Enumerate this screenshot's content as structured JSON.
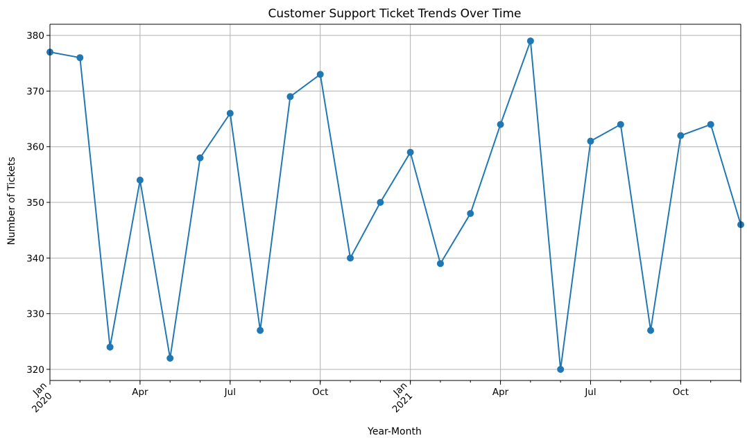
{
  "chart_data": {
    "type": "line",
    "title": "Customer Support Ticket Trends Over Time",
    "xlabel": "Year-Month",
    "ylabel": "Number of Tickets",
    "ylim": [
      318,
      382
    ],
    "yticks": [
      320,
      330,
      340,
      350,
      360,
      370,
      380
    ],
    "grid": true,
    "legend": "none",
    "series_color": "#1f77b4",
    "x": [
      "2020-01",
      "2020-02",
      "2020-03",
      "2020-04",
      "2020-05",
      "2020-06",
      "2020-07",
      "2020-08",
      "2020-09",
      "2020-10",
      "2020-11",
      "2020-12",
      "2021-01",
      "2021-02",
      "2021-03",
      "2021-04",
      "2021-05",
      "2021-06",
      "2021-07",
      "2021-08",
      "2021-09",
      "2021-10",
      "2021-11",
      "2021-12"
    ],
    "values": [
      377,
      376,
      324,
      354,
      322,
      358,
      366,
      327,
      369,
      373,
      340,
      350,
      359,
      339,
      348,
      364,
      379,
      320,
      361,
      364,
      327,
      362,
      364,
      346
    ],
    "xtick_labels": [
      {
        "index": 0,
        "month": "Jan",
        "year": "2020"
      },
      {
        "index": 3,
        "month": "Apr"
      },
      {
        "index": 6,
        "month": "Jul"
      },
      {
        "index": 9,
        "month": "Oct"
      },
      {
        "index": 12,
        "month": "Jan",
        "year": "2021"
      },
      {
        "index": 15,
        "month": "Apr"
      },
      {
        "index": 18,
        "month": "Jul"
      },
      {
        "index": 21,
        "month": "Oct"
      }
    ]
  }
}
